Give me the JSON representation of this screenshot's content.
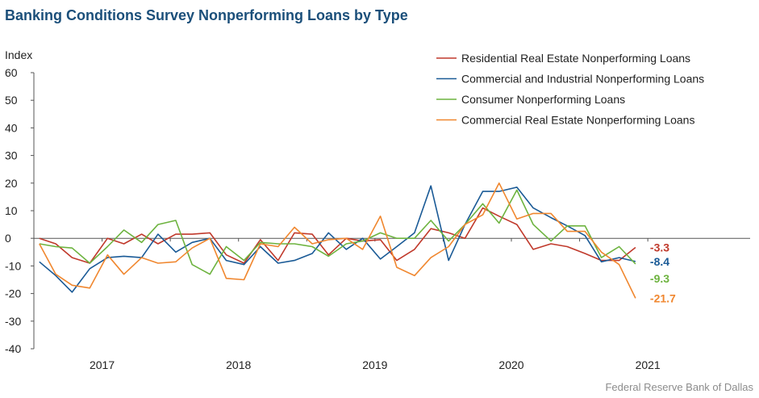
{
  "chart_data": {
    "type": "line",
    "title": "Banking Conditions Survey Nonperforming Loans by Type",
    "ylabel": "Index",
    "ylim": [
      -40,
      60
    ],
    "yticks": [
      60,
      50,
      40,
      30,
      20,
      10,
      0,
      -10,
      -20,
      -30,
      -40
    ],
    "xlim": [
      2016.5,
      2021.75
    ],
    "xticks": [
      {
        "label": "2017",
        "x": 2017.0
      },
      {
        "label": "2018",
        "x": 2018.0
      },
      {
        "label": "2019",
        "x": 2019.0
      },
      {
        "label": "2020",
        "x": 2020.0
      },
      {
        "label": "2021",
        "x": 2021.0
      }
    ],
    "source": "Federal Reserve Bank of Dallas",
    "legend_position": "top-right",
    "grid": false,
    "x": [
      2016.54,
      2016.66,
      2016.78,
      2016.91,
      2017.04,
      2017.16,
      2017.29,
      2017.41,
      2017.54,
      2017.66,
      2017.79,
      2017.91,
      2018.04,
      2018.16,
      2018.29,
      2018.41,
      2018.54,
      2018.66,
      2018.79,
      2018.91,
      2019.04,
      2019.16,
      2019.29,
      2019.41,
      2019.54,
      2019.66,
      2019.79,
      2019.91,
      2020.04,
      2020.16,
      2020.29,
      2020.41,
      2020.54,
      2020.66,
      2020.79,
      2020.91
    ],
    "series": [
      {
        "name": "Residential Real Estate Nonperforming Loans",
        "color": "#c0392b",
        "end_label": "-3.3",
        "values": [
          0,
          -2,
          -7,
          -9,
          0,
          -2,
          1.5,
          -2,
          1.5,
          1.5,
          2,
          -6,
          -9,
          -0.5,
          -8,
          2,
          1.5,
          -6,
          0,
          -1,
          -0.5,
          -8,
          -4,
          3.5,
          2,
          0,
          11,
          8,
          5,
          -4,
          -2,
          -3,
          -5.5,
          -8,
          -8,
          -3.3
        ]
      },
      {
        "name": "Commercial and Industrial Nonperforming Loans",
        "color": "#1a5a96",
        "end_label": "-8.4",
        "values": [
          -8.5,
          -13.5,
          -19.5,
          -11,
          -7,
          -6.5,
          -7,
          1.5,
          -5,
          -1.5,
          0,
          -8,
          -9.5,
          -3,
          -9,
          -8,
          -5.5,
          2,
          -4,
          0,
          -7.5,
          -3,
          2,
          19,
          -8,
          5,
          17,
          17,
          18.5,
          11,
          7.5,
          4.5,
          1,
          -8.5,
          -7,
          -8.4
        ]
      },
      {
        "name": "Consumer Nonperforming Loans",
        "color": "#6db33f",
        "end_label": "-9.3",
        "values": [
          -2,
          -3,
          -3.5,
          -9,
          -3,
          3,
          -1.5,
          5,
          6.5,
          -9.5,
          -13,
          -3,
          -8,
          -1.5,
          -2,
          -2,
          -3,
          -6.5,
          -2,
          -1,
          2,
          0,
          0,
          6.5,
          -1,
          5,
          12.5,
          5.5,
          17.5,
          5,
          -1,
          4.5,
          4.5,
          -7,
          -3,
          -9.3
        ]
      },
      {
        "name": "Commercial Real Estate Nonperforming Loans",
        "color": "#f0872f",
        "end_label": "-21.7",
        "values": [
          -2,
          -13,
          -17,
          -18,
          -6,
          -13,
          -7,
          -9,
          -8.5,
          -3.5,
          0,
          -14.5,
          -15,
          -2,
          -3,
          4,
          -2,
          -0.5,
          0,
          -4,
          8,
          -10.5,
          -13.5,
          -7,
          -3,
          5,
          8.5,
          20,
          7,
          9,
          9,
          2.5,
          2.5,
          -5,
          -9.5,
          -21.7
        ]
      }
    ]
  }
}
